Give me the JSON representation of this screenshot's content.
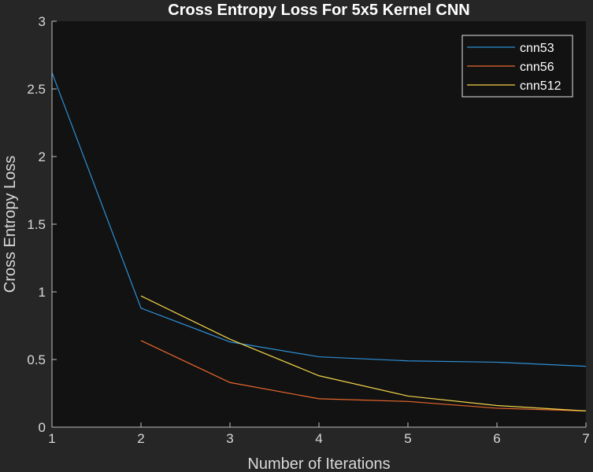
{
  "chart_data": {
    "type": "line",
    "title": "Cross Entropy Loss For 5x5 Kernel CNN",
    "xlabel": "Number of Iterations",
    "ylabel": "Cross Entropy Loss",
    "xlim": [
      1,
      7
    ],
    "ylim": [
      0,
      3
    ],
    "xticks": [
      "1",
      "2",
      "3",
      "4",
      "5",
      "6",
      "7"
    ],
    "yticks": [
      "0",
      "0.5",
      "1",
      "1.5",
      "2",
      "2.5",
      "3"
    ],
    "grid": false,
    "legend_position": "top-right",
    "series": [
      {
        "name": "cnn53",
        "color": "#2e8fd6",
        "x": [
          1,
          2,
          3,
          4,
          5,
          6,
          7
        ],
        "values": [
          2.62,
          0.88,
          0.63,
          0.52,
          0.49,
          0.48,
          0.45
        ]
      },
      {
        "name": "cnn56",
        "color": "#e8682c",
        "x": [
          2,
          3,
          4,
          5,
          6,
          7
        ],
        "values": [
          0.64,
          0.33,
          0.21,
          0.19,
          0.14,
          0.12
        ]
      },
      {
        "name": "cnn512",
        "color": "#f2d34a",
        "x": [
          2,
          3,
          4,
          5,
          6,
          7
        ],
        "values": [
          0.97,
          0.65,
          0.38,
          0.23,
          0.16,
          0.12
        ]
      }
    ]
  },
  "colors": {
    "figure_background": "#262626",
    "axes_background": "#121212",
    "axis_color": "#bfbfbf",
    "text_color": "#d9d9d9"
  }
}
